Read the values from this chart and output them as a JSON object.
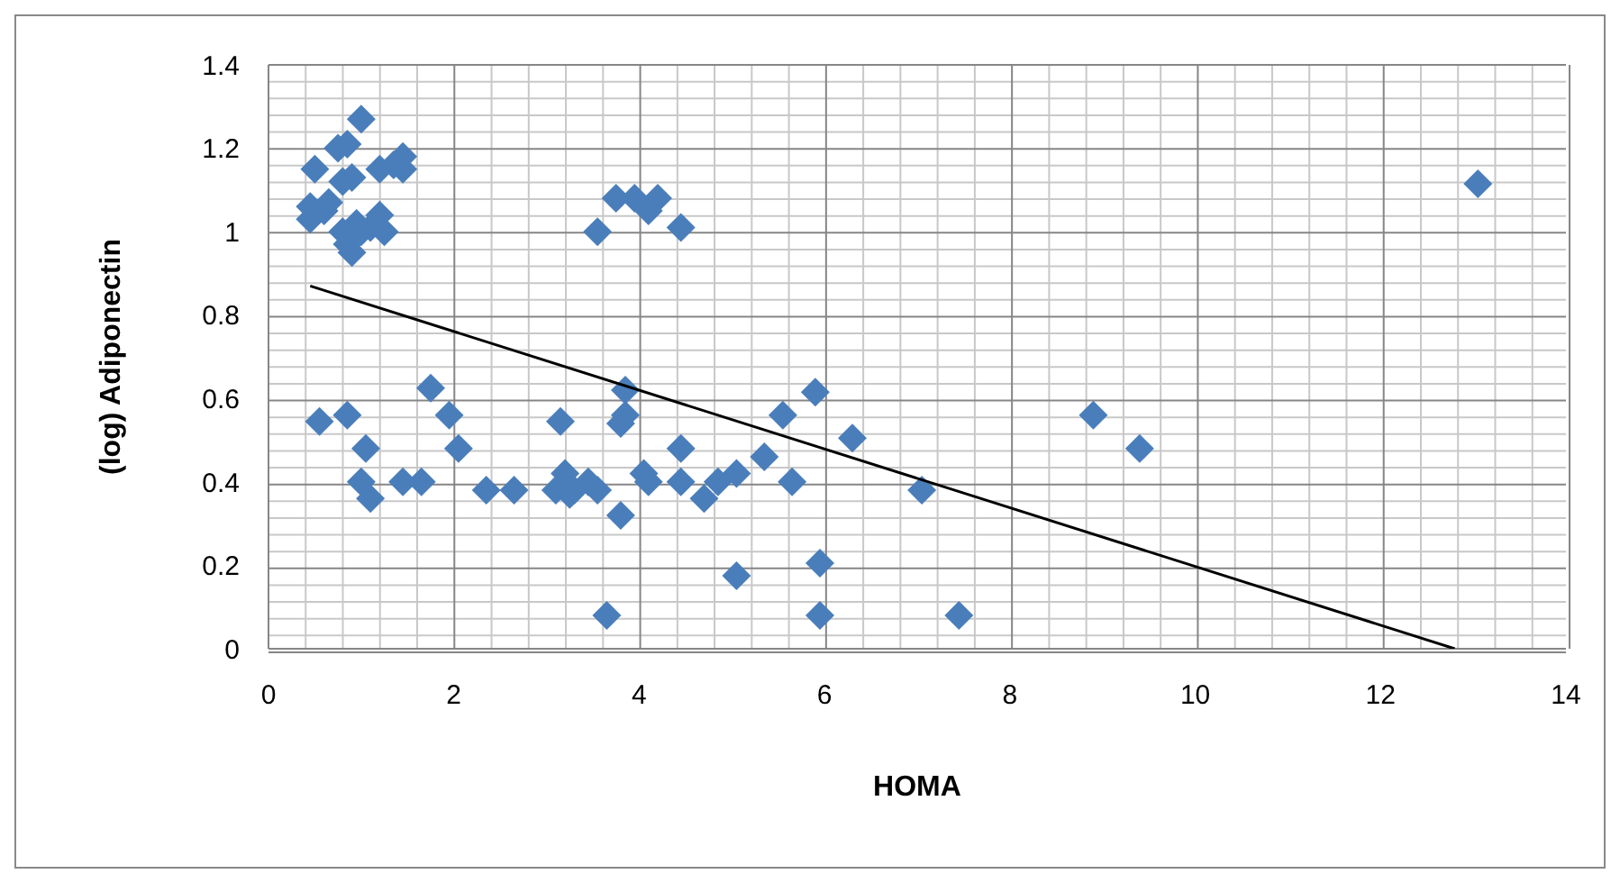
{
  "chart_data": {
    "type": "scatter",
    "xlabel": "HOMA",
    "ylabel": "(log) Adiponectin",
    "xlim": [
      0,
      14
    ],
    "xticks": [
      0,
      2,
      4,
      6,
      8,
      10,
      12,
      14
    ],
    "ylim": [
      0,
      1.4
    ],
    "yticks": [
      0,
      0.2,
      0.4,
      0.6,
      0.8,
      1,
      1.2,
      1.4
    ],
    "grid": true,
    "series": [
      {
        "color": "#4a7ebb",
        "marker": "diamond",
        "x": [
          0.45,
          0.45,
          0.5,
          0.6,
          0.65,
          0.75,
          0.8,
          0.85,
          0.8,
          0.85,
          0.9,
          0.95,
          0.9,
          1.0,
          1.0,
          1.1,
          1.2,
          1.25,
          1.2,
          1.35,
          1.45,
          1.45,
          3.55,
          3.75,
          3.95,
          4.1,
          4.2,
          4.45,
          13.05,
          0.55,
          0.85,
          1.0,
          1.05,
          1.1,
          1.45,
          1.65,
          1.75,
          1.95,
          2.05,
          2.35,
          2.65,
          3.1,
          3.15,
          3.2,
          3.25,
          3.3,
          3.45,
          3.55,
          3.65,
          3.8,
          3.85,
          3.85,
          3.8,
          4.05,
          4.1,
          4.45,
          4.45,
          4.7,
          4.85,
          5.05,
          5.05,
          5.35,
          5.55,
          5.65,
          5.9,
          5.95,
          5.95,
          6.3,
          7.05,
          7.45,
          8.9,
          9.4
        ],
        "values": [
          1.06,
          1.03,
          1.15,
          1.05,
          1.07,
          1.2,
          1.12,
          1.21,
          1.0,
          0.97,
          0.95,
          1.02,
          1.13,
          1.27,
          1.0,
          1.01,
          1.04,
          1.0,
          1.15,
          1.16,
          1.18,
          1.15,
          1.0,
          1.08,
          1.08,
          1.05,
          1.08,
          1.01,
          1.115,
          0.545,
          0.56,
          0.4,
          0.48,
          0.36,
          0.4,
          0.4,
          0.625,
          0.56,
          0.48,
          0.38,
          0.38,
          0.38,
          0.545,
          0.42,
          0.37,
          0.38,
          0.4,
          0.38,
          0.08,
          0.54,
          0.62,
          0.56,
          0.32,
          0.42,
          0.4,
          0.48,
          0.4,
          0.36,
          0.4,
          0.42,
          0.175,
          0.46,
          0.56,
          0.4,
          0.615,
          0.205,
          0.08,
          0.505,
          0.38,
          0.08,
          0.56,
          0.48
        ]
      },
      {
        "type": "line",
        "color": "#000000",
        "marker": "none",
        "line_style": "solid",
        "x": [
          0.45,
          12.8
        ],
        "values": [
          0.87,
          0
        ]
      }
    ]
  }
}
